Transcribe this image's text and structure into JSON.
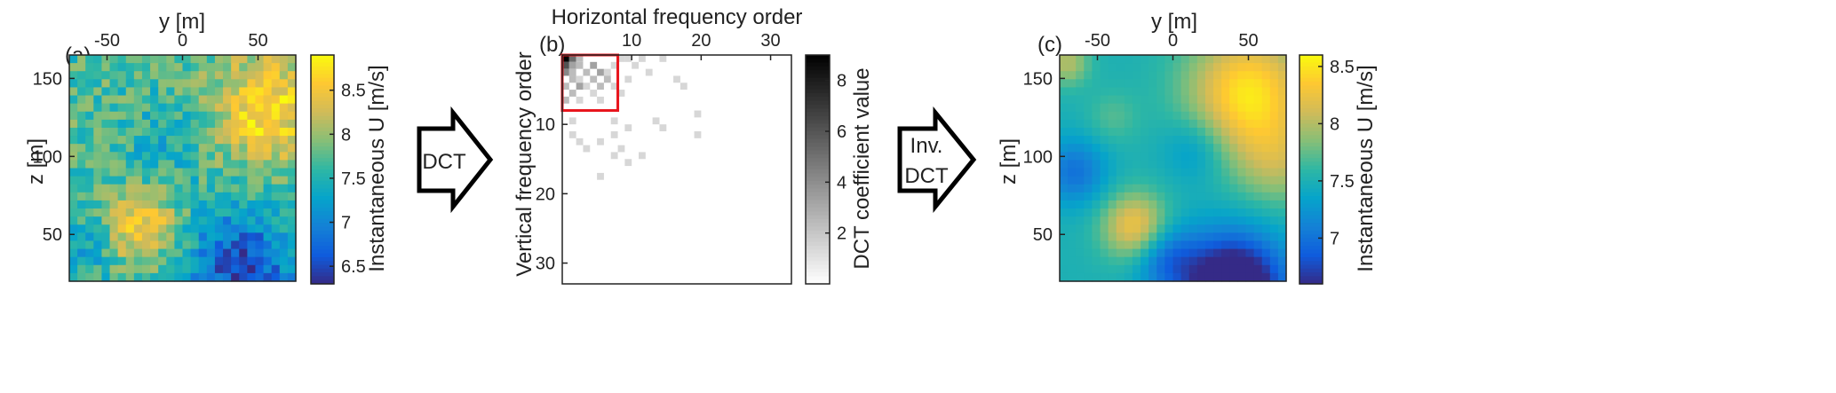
{
  "colors": {
    "parula": [
      "#352a87",
      "#0f5cdd",
      "#1481d6",
      "#06a4ca",
      "#2eb7a4",
      "#87bf77",
      "#d1bb59",
      "#fec832",
      "#f9fb0e"
    ],
    "box_highlight": "#e8141c",
    "arrow": "#000000"
  },
  "arrows": {
    "forward": "DCT",
    "inverse_1": "Inv.",
    "inverse_2": "DCT"
  },
  "chart_data": [
    {
      "type": "heatmap",
      "panel": "(a)",
      "xlabel": "y [m]",
      "ylabel": "z [m]",
      "xticks": [
        -50,
        0,
        50
      ],
      "yticks": [
        50,
        100,
        150
      ],
      "xlim": [
        -75,
        75
      ],
      "ylim": [
        20,
        165
      ],
      "colorbar": {
        "label": "Instantaneous  U [m/s]",
        "range": [
          6.3,
          8.9
        ],
        "ticks": [
          6.5,
          7,
          7.5,
          8,
          8.5
        ]
      },
      "grid_cells": [
        28,
        28
      ],
      "blobs": [
        {
          "y": 55,
          "z": 130,
          "amp": 1.0,
          "w": 25
        },
        {
          "y": -28,
          "z": 55,
          "amp": 0.9,
          "w": 16
        },
        {
          "y": 40,
          "z": 30,
          "amp": -1.2,
          "w": 25
        },
        {
          "y": -10,
          "z": 110,
          "amp": -0.3,
          "w": 20
        },
        {
          "y": -70,
          "z": 40,
          "amp": -0.4,
          "w": 18
        }
      ],
      "base_value": 7.7,
      "noise": 0.35
    },
    {
      "type": "heatmap",
      "panel": "(b)",
      "xlabel": "Horizontal frequency order",
      "ylabel": "Vertical frequency order",
      "xticks": [
        10,
        20,
        30
      ],
      "yticks": [
        10,
        20,
        30
      ],
      "xlim": [
        0,
        33
      ],
      "ylim": [
        0,
        33
      ],
      "colorbar": {
        "label": "DCT coefficient value",
        "range": [
          0,
          9
        ],
        "ticks": [
          2,
          4,
          6,
          8
        ]
      },
      "highlight_box": {
        "x": [
          0,
          8
        ],
        "y": [
          0,
          8
        ]
      },
      "coefficients": [
        [
          1,
          1,
          9
        ],
        [
          2,
          1,
          5
        ],
        [
          3,
          1,
          2
        ],
        [
          1,
          2,
          6
        ],
        [
          2,
          2,
          3
        ],
        [
          3,
          2,
          2
        ],
        [
          5,
          2,
          3
        ],
        [
          1,
          3,
          4
        ],
        [
          2,
          3,
          2
        ],
        [
          4,
          3,
          2
        ],
        [
          6,
          3,
          3
        ],
        [
          7,
          3,
          1
        ],
        [
          2,
          4,
          2
        ],
        [
          3,
          4,
          1
        ],
        [
          5,
          4,
          2
        ],
        [
          7,
          4,
          2
        ],
        [
          1,
          5,
          2
        ],
        [
          3,
          5,
          3
        ],
        [
          4,
          5,
          1
        ],
        [
          6,
          5,
          2
        ],
        [
          8,
          5,
          1
        ],
        [
          2,
          6,
          2
        ],
        [
          5,
          6,
          1
        ],
        [
          9,
          6,
          1
        ],
        [
          1,
          7,
          2
        ],
        [
          3,
          7,
          1
        ],
        [
          6,
          7,
          1
        ],
        [
          8,
          2,
          1
        ],
        [
          9,
          1,
          1
        ],
        [
          10,
          1,
          1
        ],
        [
          12,
          1,
          1
        ],
        [
          15,
          1,
          1
        ],
        [
          13,
          3,
          1
        ],
        [
          10,
          4,
          1
        ],
        [
          17,
          4,
          1
        ],
        [
          18,
          5,
          1
        ],
        [
          20,
          9,
          1
        ],
        [
          20,
          12,
          1
        ],
        [
          15,
          11,
          1
        ],
        [
          14,
          10,
          1
        ],
        [
          8,
          10,
          1
        ],
        [
          10,
          11,
          1
        ],
        [
          8,
          12,
          1
        ],
        [
          2,
          12,
          1
        ],
        [
          2,
          10,
          1
        ],
        [
          6,
          13,
          1
        ],
        [
          4,
          14,
          1
        ],
        [
          8,
          15,
          1
        ],
        [
          10,
          16,
          1
        ],
        [
          6,
          18,
          1
        ],
        [
          3,
          13,
          1
        ],
        [
          9,
          14,
          1
        ],
        [
          12,
          15,
          1
        ],
        [
          11,
          2,
          1
        ]
      ]
    },
    {
      "type": "heatmap",
      "panel": "(c)",
      "xlabel": "y [m]",
      "ylabel": "z [m]",
      "xticks": [
        -50,
        0,
        50
      ],
      "yticks": [
        50,
        100,
        150
      ],
      "xlim": [
        -75,
        75
      ],
      "ylim": [
        20,
        165
      ],
      "colorbar": {
        "label": "Instantaneous  U [m/s]",
        "range": [
          6.6,
          8.6
        ],
        "ticks": [
          7,
          7.5,
          8,
          8.5
        ]
      },
      "grid_cells": [
        28,
        28
      ],
      "blobs": [
        {
          "y": 50,
          "z": 140,
          "amp": 1.0,
          "w": 28
        },
        {
          "y": 70,
          "z": 95,
          "amp": 0.4,
          "w": 20
        },
        {
          "y": -25,
          "z": 55,
          "amp": 0.8,
          "w": 15
        },
        {
          "y": -70,
          "z": 160,
          "amp": 0.5,
          "w": 10
        },
        {
          "y": -40,
          "z": 125,
          "amp": 0.2,
          "w": 12
        },
        {
          "y": 40,
          "z": 15,
          "amp": -1.4,
          "w": 24
        },
        {
          "y": -65,
          "z": 90,
          "amp": -0.5,
          "w": 15
        },
        {
          "y": 15,
          "z": 105,
          "amp": -0.3,
          "w": 15
        },
        {
          "y": -5,
          "z": 35,
          "amp": -0.5,
          "w": 15
        }
      ],
      "base_value": 7.5,
      "noise": 0
    }
  ]
}
